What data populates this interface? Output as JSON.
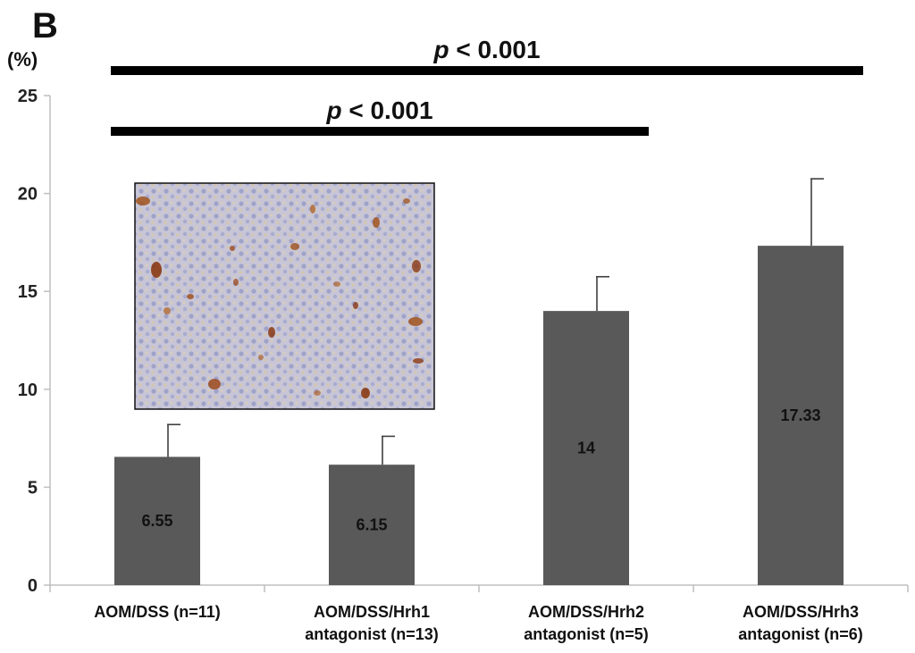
{
  "panel_label": "B",
  "chart_data": {
    "type": "bar",
    "ylabel": "(%)",
    "ylim": [
      0,
      25
    ],
    "yticks": [
      0,
      5,
      10,
      15,
      20,
      25
    ],
    "grid": false,
    "bar_color": "#595959",
    "categories": [
      [
        "AOM/DSS (n=11)"
      ],
      [
        "AOM/DSS/Hrh1",
        "antagonist (n=13)"
      ],
      [
        "AOM/DSS/Hrh2",
        "antagonist (n=5)"
      ],
      [
        "AOM/DSS/Hrh3",
        "antagonist (n=6)"
      ]
    ],
    "values": [
      6.55,
      6.15,
      14,
      17.33
    ],
    "value_labels": [
      "6.55",
      "6.15",
      "14",
      "17.33"
    ],
    "error_upper": [
      8.2,
      7.6,
      15.75,
      20.75
    ],
    "significance": [
      {
        "from": 0,
        "to": 3,
        "p_symbol": "p",
        "p_text": " < 0.001"
      },
      {
        "from": 0,
        "to": 2,
        "p_symbol": "p",
        "p_text": " < 0.001"
      }
    ],
    "inset_image": "immunohistochemistry-micrograph"
  }
}
